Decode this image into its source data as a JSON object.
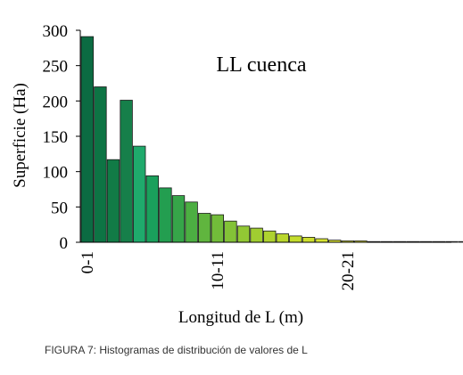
{
  "chart_data": {
    "type": "bar",
    "title": "LL cuenca",
    "xlabel": "Longitud de L (m)",
    "ylabel": "Superficie (Ha)",
    "ylim": [
      0,
      300
    ],
    "yticks": [
      0,
      50,
      100,
      150,
      200,
      250,
      300
    ],
    "xtick_labels": [
      {
        "index": 0,
        "label": "0-1"
      },
      {
        "index": 10,
        "label": "10-11"
      },
      {
        "index": 20,
        "label": "20-21"
      }
    ],
    "grid": false,
    "legend": "none",
    "values": [
      291,
      220,
      117,
      201,
      136,
      94,
      77,
      66,
      57,
      41,
      39,
      30,
      23,
      20,
      16,
      12,
      9,
      7,
      5,
      3,
      2,
      2,
      1,
      1,
      1,
      1,
      1,
      1,
      1,
      1,
      1,
      1,
      1,
      1,
      1,
      1,
      1
    ],
    "colors": [
      "#0b6b42",
      "#0d7444",
      "#117b46",
      "#167f4a",
      "#1faa6c",
      "#1aa05c",
      "#239e50",
      "#36a549",
      "#4cae42",
      "#60b53e",
      "#72bc3a",
      "#83c237",
      "#92c834",
      "#a0cd31",
      "#aed22f",
      "#bad72d",
      "#c4dc2c",
      "#cddf2e",
      "#d5e232",
      "#dbe436",
      "#e0e73c",
      "#e4e942",
      "#e8ec4a"
    ]
  },
  "caption": "FIGURA 7: Histogramas de distribución de valores de L"
}
